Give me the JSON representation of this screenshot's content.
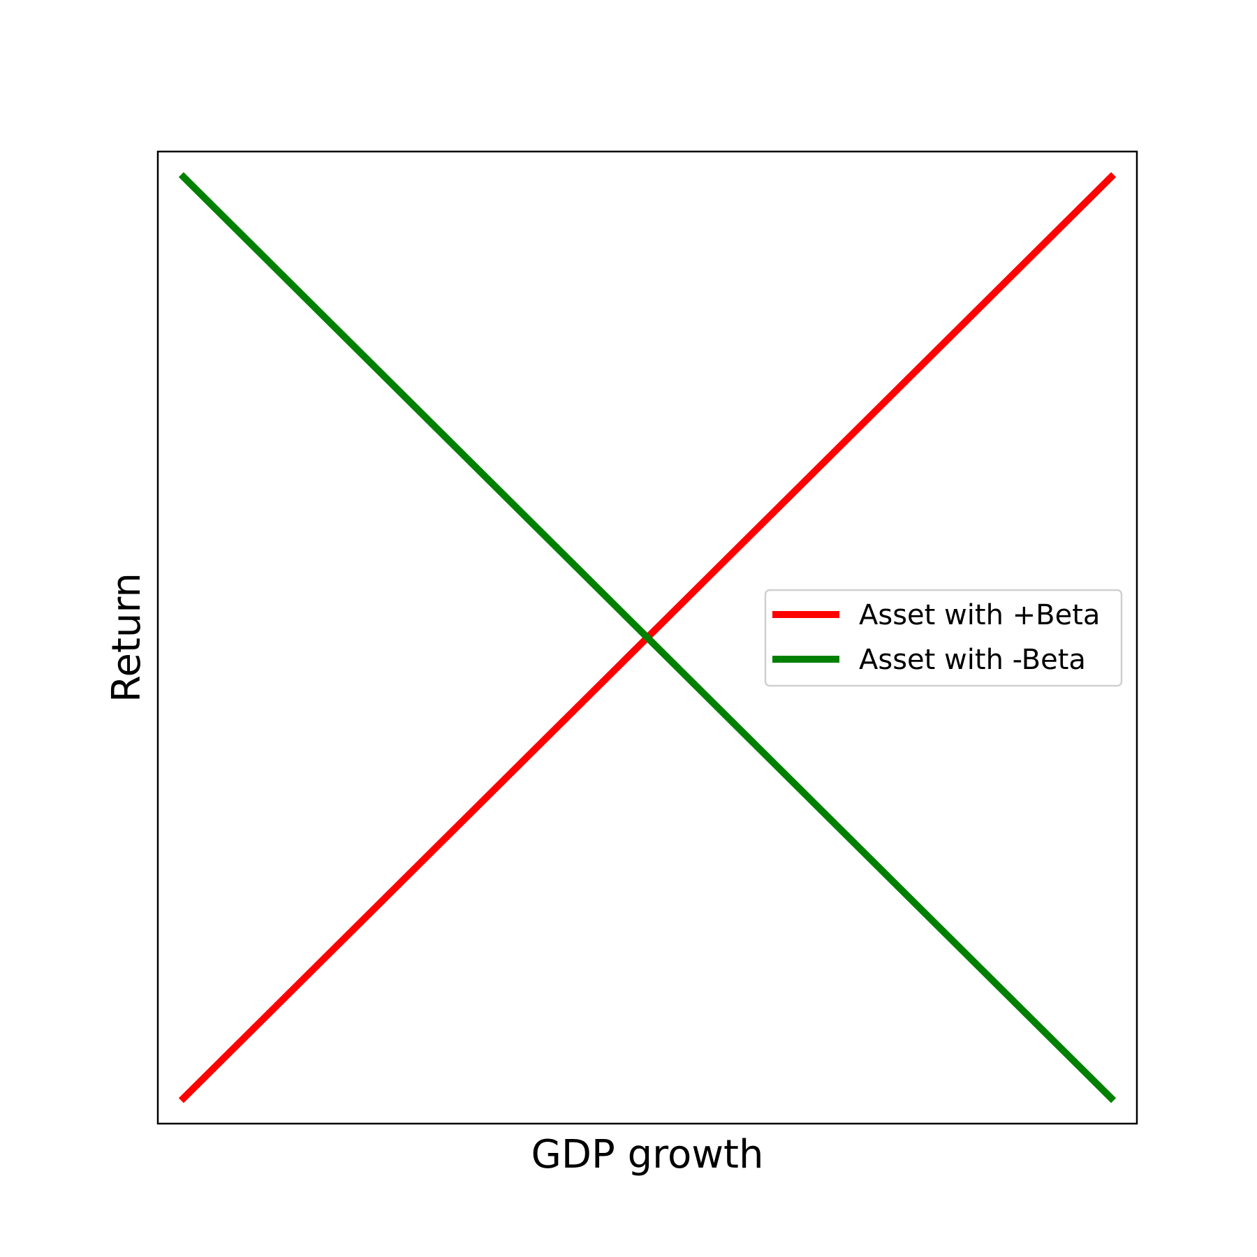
{
  "chart_data": {
    "type": "line",
    "title": "",
    "xlabel": "GDP growth",
    "ylabel": "Return",
    "xlim": [
      -1.05,
      1.05
    ],
    "ylim": [
      -1.05,
      1.05
    ],
    "grid": false,
    "ticks_visible": false,
    "legend": {
      "placement": "center-right"
    },
    "series": [
      {
        "name": "Asset with +Beta",
        "color": "#ff0000",
        "x": [
          -1,
          1
        ],
        "y": [
          -1,
          1
        ]
      },
      {
        "name": "Asset with -Beta",
        "color": "#008000",
        "x": [
          -1,
          1
        ],
        "y": [
          1,
          -1
        ]
      }
    ]
  }
}
